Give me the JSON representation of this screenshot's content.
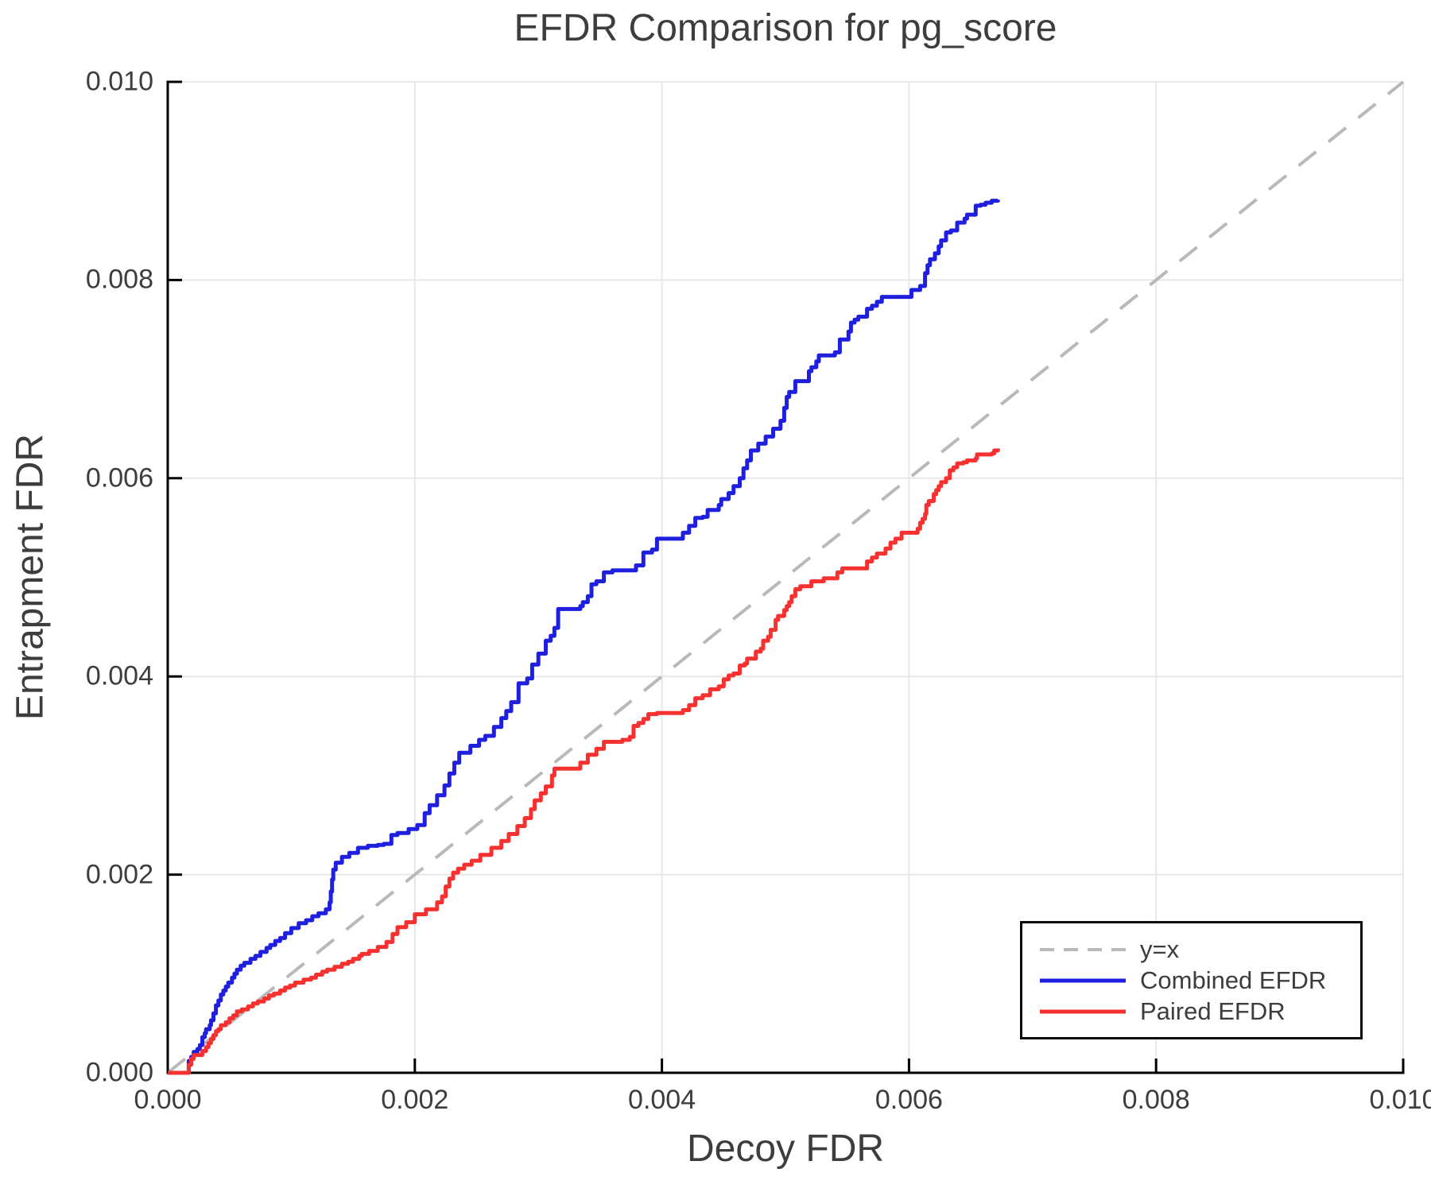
{
  "title": "EFDR Comparison for pg_score",
  "axes": {
    "xlabel": "Decoy FDR",
    "ylabel": "Entrapment FDR",
    "tick_values": [
      0,
      0.002,
      0.004,
      0.006,
      0.008,
      0.01
    ],
    "x_tick_labels": [
      "0.000",
      "0.002",
      "0.004",
      "0.006",
      "0.008",
      "0.010"
    ],
    "y_tick_labels": [
      "0.000",
      "0.002",
      "0.004",
      "0.006",
      "0.008",
      "0.010"
    ]
  },
  "legend": {
    "entries": [
      {
        "label": "y=x",
        "color": "#b9b9b9",
        "dash": true,
        "width": 4
      },
      {
        "label": "Combined EFDR",
        "color": "#1f1fe0",
        "dash": false,
        "width": 5
      },
      {
        "label": "Paired EFDR",
        "color": "#f73030",
        "dash": false,
        "width": 5
      }
    ]
  },
  "chart_data": {
    "type": "line",
    "title": "EFDR Comparison for pg_score",
    "xlabel": "Decoy FDR",
    "ylabel": "Entrapment FDR",
    "xlim": [
      0,
      0.01
    ],
    "ylim": [
      0,
      0.01
    ],
    "grid": true,
    "grid_color": "#e8e8e8",
    "axis_color": "#000000",
    "text_color": "#3d3d3d",
    "legend_position": "lower right",
    "diagonal": {
      "name": "y=x",
      "color": "#b9b9b9",
      "style": "dashed",
      "points": [
        [
          0,
          0
        ],
        [
          0.01,
          0.01
        ]
      ]
    },
    "series": [
      {
        "name": "Combined EFDR",
        "color": "#1f1fe0",
        "step": true,
        "points": [
          [
            0.0,
            0.0
          ],
          [
            0.00017,
            0.0
          ],
          [
            0.00017,
            0.00012
          ],
          [
            0.00019,
            0.00016
          ],
          [
            0.00021,
            0.00021
          ],
          [
            0.00024,
            0.00024
          ],
          [
            0.00026,
            0.00028
          ],
          [
            0.00028,
            0.00036
          ],
          [
            0.0003,
            0.0004
          ],
          [
            0.00031,
            0.00044
          ],
          [
            0.00034,
            0.00048
          ],
          [
            0.00035,
            0.00053
          ],
          [
            0.00037,
            0.0006
          ],
          [
            0.00039,
            0.00068
          ],
          [
            0.00041,
            0.00073
          ],
          [
            0.00043,
            0.00079
          ],
          [
            0.00045,
            0.00083
          ],
          [
            0.00047,
            0.00087
          ],
          [
            0.00049,
            0.00091
          ],
          [
            0.00052,
            0.00096
          ],
          [
            0.00054,
            0.001
          ],
          [
            0.00056,
            0.00104
          ],
          [
            0.00059,
            0.00108
          ],
          [
            0.00062,
            0.00111
          ],
          [
            0.00067,
            0.00115
          ],
          [
            0.00071,
            0.00118
          ],
          [
            0.00075,
            0.00122
          ],
          [
            0.0008,
            0.00126
          ],
          [
            0.00083,
            0.00129
          ],
          [
            0.00087,
            0.00133
          ],
          [
            0.00091,
            0.00136
          ],
          [
            0.00095,
            0.00141
          ],
          [
            0.001,
            0.00146
          ],
          [
            0.00106,
            0.00151
          ],
          [
            0.00112,
            0.00154
          ],
          [
            0.00117,
            0.00158
          ],
          [
            0.00122,
            0.00161
          ],
          [
            0.00128,
            0.00165
          ],
          [
            0.00131,
            0.00172
          ],
          [
            0.00132,
            0.00183
          ],
          [
            0.00133,
            0.00195
          ],
          [
            0.00134,
            0.00205
          ],
          [
            0.00136,
            0.00212
          ],
          [
            0.00141,
            0.00218
          ],
          [
            0.00147,
            0.00222
          ],
          [
            0.00154,
            0.00227
          ],
          [
            0.00162,
            0.00229
          ],
          [
            0.0017,
            0.0023
          ],
          [
            0.00175,
            0.00231
          ],
          [
            0.00181,
            0.0024
          ],
          [
            0.00186,
            0.00242
          ],
          [
            0.00195,
            0.00246
          ],
          [
            0.00202,
            0.0025
          ],
          [
            0.00208,
            0.00262
          ],
          [
            0.00212,
            0.0027
          ],
          [
            0.00218,
            0.0028
          ],
          [
            0.00224,
            0.0029
          ],
          [
            0.00228,
            0.00302
          ],
          [
            0.00232,
            0.00313
          ],
          [
            0.00236,
            0.00323
          ],
          [
            0.00245,
            0.0033
          ],
          [
            0.00252,
            0.00336
          ],
          [
            0.00257,
            0.0034
          ],
          [
            0.00264,
            0.00349
          ],
          [
            0.0027,
            0.00358
          ],
          [
            0.00274,
            0.00365
          ],
          [
            0.00278,
            0.00374
          ],
          [
            0.00284,
            0.00393
          ],
          [
            0.00291,
            0.00398
          ],
          [
            0.00295,
            0.00412
          ],
          [
            0.003,
            0.00423
          ],
          [
            0.00306,
            0.00436
          ],
          [
            0.0031,
            0.00441
          ],
          [
            0.00313,
            0.00449
          ],
          [
            0.00316,
            0.00468
          ],
          [
            0.00334,
            0.00471
          ],
          [
            0.00336,
            0.00475
          ],
          [
            0.0034,
            0.00481
          ],
          [
            0.00343,
            0.00493
          ],
          [
            0.00347,
            0.00496
          ],
          [
            0.00353,
            0.00505
          ],
          [
            0.0036,
            0.00507
          ],
          [
            0.00379,
            0.00512
          ],
          [
            0.00385,
            0.00525
          ],
          [
            0.00392,
            0.00528
          ],
          [
            0.00396,
            0.00539
          ],
          [
            0.00417,
            0.00545
          ],
          [
            0.00422,
            0.00552
          ],
          [
            0.00427,
            0.0056
          ],
          [
            0.00433,
            0.00561
          ],
          [
            0.00437,
            0.00568
          ],
          [
            0.00446,
            0.00573
          ],
          [
            0.00448,
            0.00579
          ],
          [
            0.00454,
            0.00585
          ],
          [
            0.00458,
            0.00592
          ],
          [
            0.00463,
            0.006
          ],
          [
            0.00466,
            0.0061
          ],
          [
            0.00469,
            0.00618
          ],
          [
            0.00472,
            0.00628
          ],
          [
            0.00478,
            0.00635
          ],
          [
            0.00484,
            0.00642
          ],
          [
            0.0049,
            0.0065
          ],
          [
            0.00496,
            0.00658
          ],
          [
            0.00499,
            0.00671
          ],
          [
            0.00501,
            0.00682
          ],
          [
            0.00503,
            0.00687
          ],
          [
            0.00508,
            0.00698
          ],
          [
            0.00519,
            0.00708
          ],
          [
            0.00521,
            0.00712
          ],
          [
            0.00525,
            0.00718
          ],
          [
            0.00527,
            0.00724
          ],
          [
            0.0054,
            0.00727
          ],
          [
            0.00544,
            0.0074
          ],
          [
            0.00551,
            0.00748
          ],
          [
            0.00553,
            0.00757
          ],
          [
            0.00556,
            0.0076
          ],
          [
            0.00559,
            0.00763
          ],
          [
            0.00566,
            0.00771
          ],
          [
            0.0057,
            0.00774
          ],
          [
            0.00574,
            0.00778
          ],
          [
            0.00578,
            0.00783
          ],
          [
            0.00602,
            0.0079
          ],
          [
            0.00609,
            0.00794
          ],
          [
            0.00613,
            0.00807
          ],
          [
            0.00615,
            0.00815
          ],
          [
            0.00617,
            0.00821
          ],
          [
            0.00621,
            0.00827
          ],
          [
            0.00624,
            0.00834
          ],
          [
            0.00626,
            0.0084
          ],
          [
            0.0063,
            0.00848
          ],
          [
            0.00634,
            0.0085
          ],
          [
            0.00639,
            0.00858
          ],
          [
            0.00645,
            0.00862
          ],
          [
            0.00647,
            0.00866
          ],
          [
            0.00654,
            0.00875
          ],
          [
            0.00658,
            0.00876
          ],
          [
            0.00662,
            0.00878
          ],
          [
            0.00667,
            0.0088
          ],
          [
            0.00672,
            0.00881
          ]
        ]
      },
      {
        "name": "Paired EFDR",
        "color": "#f73030",
        "step": true,
        "points": [
          [
            0.0,
            0.0
          ],
          [
            0.00017,
            0.0
          ],
          [
            0.00017,
            8e-05
          ],
          [
            0.00019,
            0.00014
          ],
          [
            0.00021,
            0.00018
          ],
          [
            0.00028,
            0.00022
          ],
          [
            0.00031,
            0.00026
          ],
          [
            0.00033,
            0.0003
          ],
          [
            0.00035,
            0.00034
          ],
          [
            0.00037,
            0.00038
          ],
          [
            0.00039,
            0.00042
          ],
          [
            0.00041,
            0.00044
          ],
          [
            0.00043,
            0.00048
          ],
          [
            0.00047,
            0.00051
          ],
          [
            0.0005,
            0.00055
          ],
          [
            0.00053,
            0.00058
          ],
          [
            0.00056,
            0.00062
          ],
          [
            0.0006,
            0.00064
          ],
          [
            0.00065,
            0.00067
          ],
          [
            0.00069,
            0.0007
          ],
          [
            0.00073,
            0.00072
          ],
          [
            0.00078,
            0.00075
          ],
          [
            0.00082,
            0.00078
          ],
          [
            0.00086,
            0.0008
          ],
          [
            0.00091,
            0.00083
          ],
          [
            0.00095,
            0.00086
          ],
          [
            0.00099,
            0.00088
          ],
          [
            0.00103,
            0.00091
          ],
          [
            0.0011,
            0.00094
          ],
          [
            0.00116,
            0.00096
          ],
          [
            0.0012,
            0.00099
          ],
          [
            0.00125,
            0.00102
          ],
          [
            0.00129,
            0.00104
          ],
          [
            0.00135,
            0.00107
          ],
          [
            0.00141,
            0.0011
          ],
          [
            0.00146,
            0.00112
          ],
          [
            0.0015,
            0.00115
          ],
          [
            0.00155,
            0.00118
          ],
          [
            0.00157,
            0.0012
          ],
          [
            0.00163,
            0.00123
          ],
          [
            0.0017,
            0.00127
          ],
          [
            0.00177,
            0.00132
          ],
          [
            0.00182,
            0.0014
          ],
          [
            0.00186,
            0.00147
          ],
          [
            0.00193,
            0.00152
          ],
          [
            0.002,
            0.0016
          ],
          [
            0.00209,
            0.00165
          ],
          [
            0.00218,
            0.00172
          ],
          [
            0.00222,
            0.00178
          ],
          [
            0.00225,
            0.00188
          ],
          [
            0.00228,
            0.00196
          ],
          [
            0.00231,
            0.00202
          ],
          [
            0.00235,
            0.00206
          ],
          [
            0.0024,
            0.0021
          ],
          [
            0.00246,
            0.00214
          ],
          [
            0.00253,
            0.0022
          ],
          [
            0.00262,
            0.00227
          ],
          [
            0.0027,
            0.00234
          ],
          [
            0.00276,
            0.00241
          ],
          [
            0.00283,
            0.00249
          ],
          [
            0.00289,
            0.00257
          ],
          [
            0.00294,
            0.00266
          ],
          [
            0.00297,
            0.00275
          ],
          [
            0.00302,
            0.00282
          ],
          [
            0.00306,
            0.00289
          ],
          [
            0.00311,
            0.003
          ],
          [
            0.00313,
            0.00307
          ],
          [
            0.00334,
            0.00313
          ],
          [
            0.0034,
            0.00321
          ],
          [
            0.00347,
            0.00327
          ],
          [
            0.00353,
            0.00334
          ],
          [
            0.00368,
            0.00336
          ],
          [
            0.00374,
            0.00339
          ],
          [
            0.00377,
            0.0035
          ],
          [
            0.00381,
            0.00353
          ],
          [
            0.00385,
            0.00357
          ],
          [
            0.00389,
            0.00362
          ],
          [
            0.00396,
            0.00363
          ],
          [
            0.00417,
            0.00366
          ],
          [
            0.00422,
            0.00371
          ],
          [
            0.00427,
            0.00378
          ],
          [
            0.00433,
            0.00381
          ],
          [
            0.00439,
            0.00387
          ],
          [
            0.00446,
            0.0039
          ],
          [
            0.0045,
            0.00397
          ],
          [
            0.00454,
            0.00401
          ],
          [
            0.00458,
            0.00403
          ],
          [
            0.00463,
            0.00411
          ],
          [
            0.00467,
            0.00413
          ],
          [
            0.00469,
            0.00418
          ],
          [
            0.00476,
            0.00425
          ],
          [
            0.0048,
            0.00428
          ],
          [
            0.00482,
            0.00436
          ],
          [
            0.00486,
            0.0044
          ],
          [
            0.00488,
            0.00447
          ],
          [
            0.00492,
            0.00457
          ],
          [
            0.00494,
            0.00461
          ],
          [
            0.00499,
            0.00467
          ],
          [
            0.00501,
            0.00471
          ],
          [
            0.00503,
            0.00475
          ],
          [
            0.00505,
            0.00481
          ],
          [
            0.00508,
            0.00488
          ],
          [
            0.00512,
            0.00491
          ],
          [
            0.00521,
            0.00496
          ],
          [
            0.00531,
            0.00499
          ],
          [
            0.00542,
            0.00505
          ],
          [
            0.00546,
            0.00509
          ],
          [
            0.00566,
            0.00516
          ],
          [
            0.0057,
            0.0052
          ],
          [
            0.00574,
            0.00524
          ],
          [
            0.00581,
            0.00529
          ],
          [
            0.00585,
            0.00535
          ],
          [
            0.00589,
            0.00539
          ],
          [
            0.00594,
            0.00545
          ],
          [
            0.00607,
            0.00549
          ],
          [
            0.00609,
            0.00555
          ],
          [
            0.00611,
            0.00559
          ],
          [
            0.00613,
            0.00564
          ],
          [
            0.00614,
            0.00573
          ],
          [
            0.00616,
            0.00577
          ],
          [
            0.0062,
            0.00584
          ],
          [
            0.00622,
            0.00588
          ],
          [
            0.00624,
            0.00592
          ],
          [
            0.00626,
            0.00596
          ],
          [
            0.0063,
            0.006
          ],
          [
            0.00633,
            0.00608
          ],
          [
            0.00636,
            0.00611
          ],
          [
            0.00639,
            0.00615
          ],
          [
            0.00644,
            0.00616
          ],
          [
            0.00647,
            0.00618
          ],
          [
            0.00654,
            0.0062
          ],
          [
            0.00655,
            0.00624
          ],
          [
            0.00667,
            0.00625
          ],
          [
            0.00669,
            0.00628
          ],
          [
            0.00672,
            0.0063
          ]
        ]
      }
    ]
  }
}
